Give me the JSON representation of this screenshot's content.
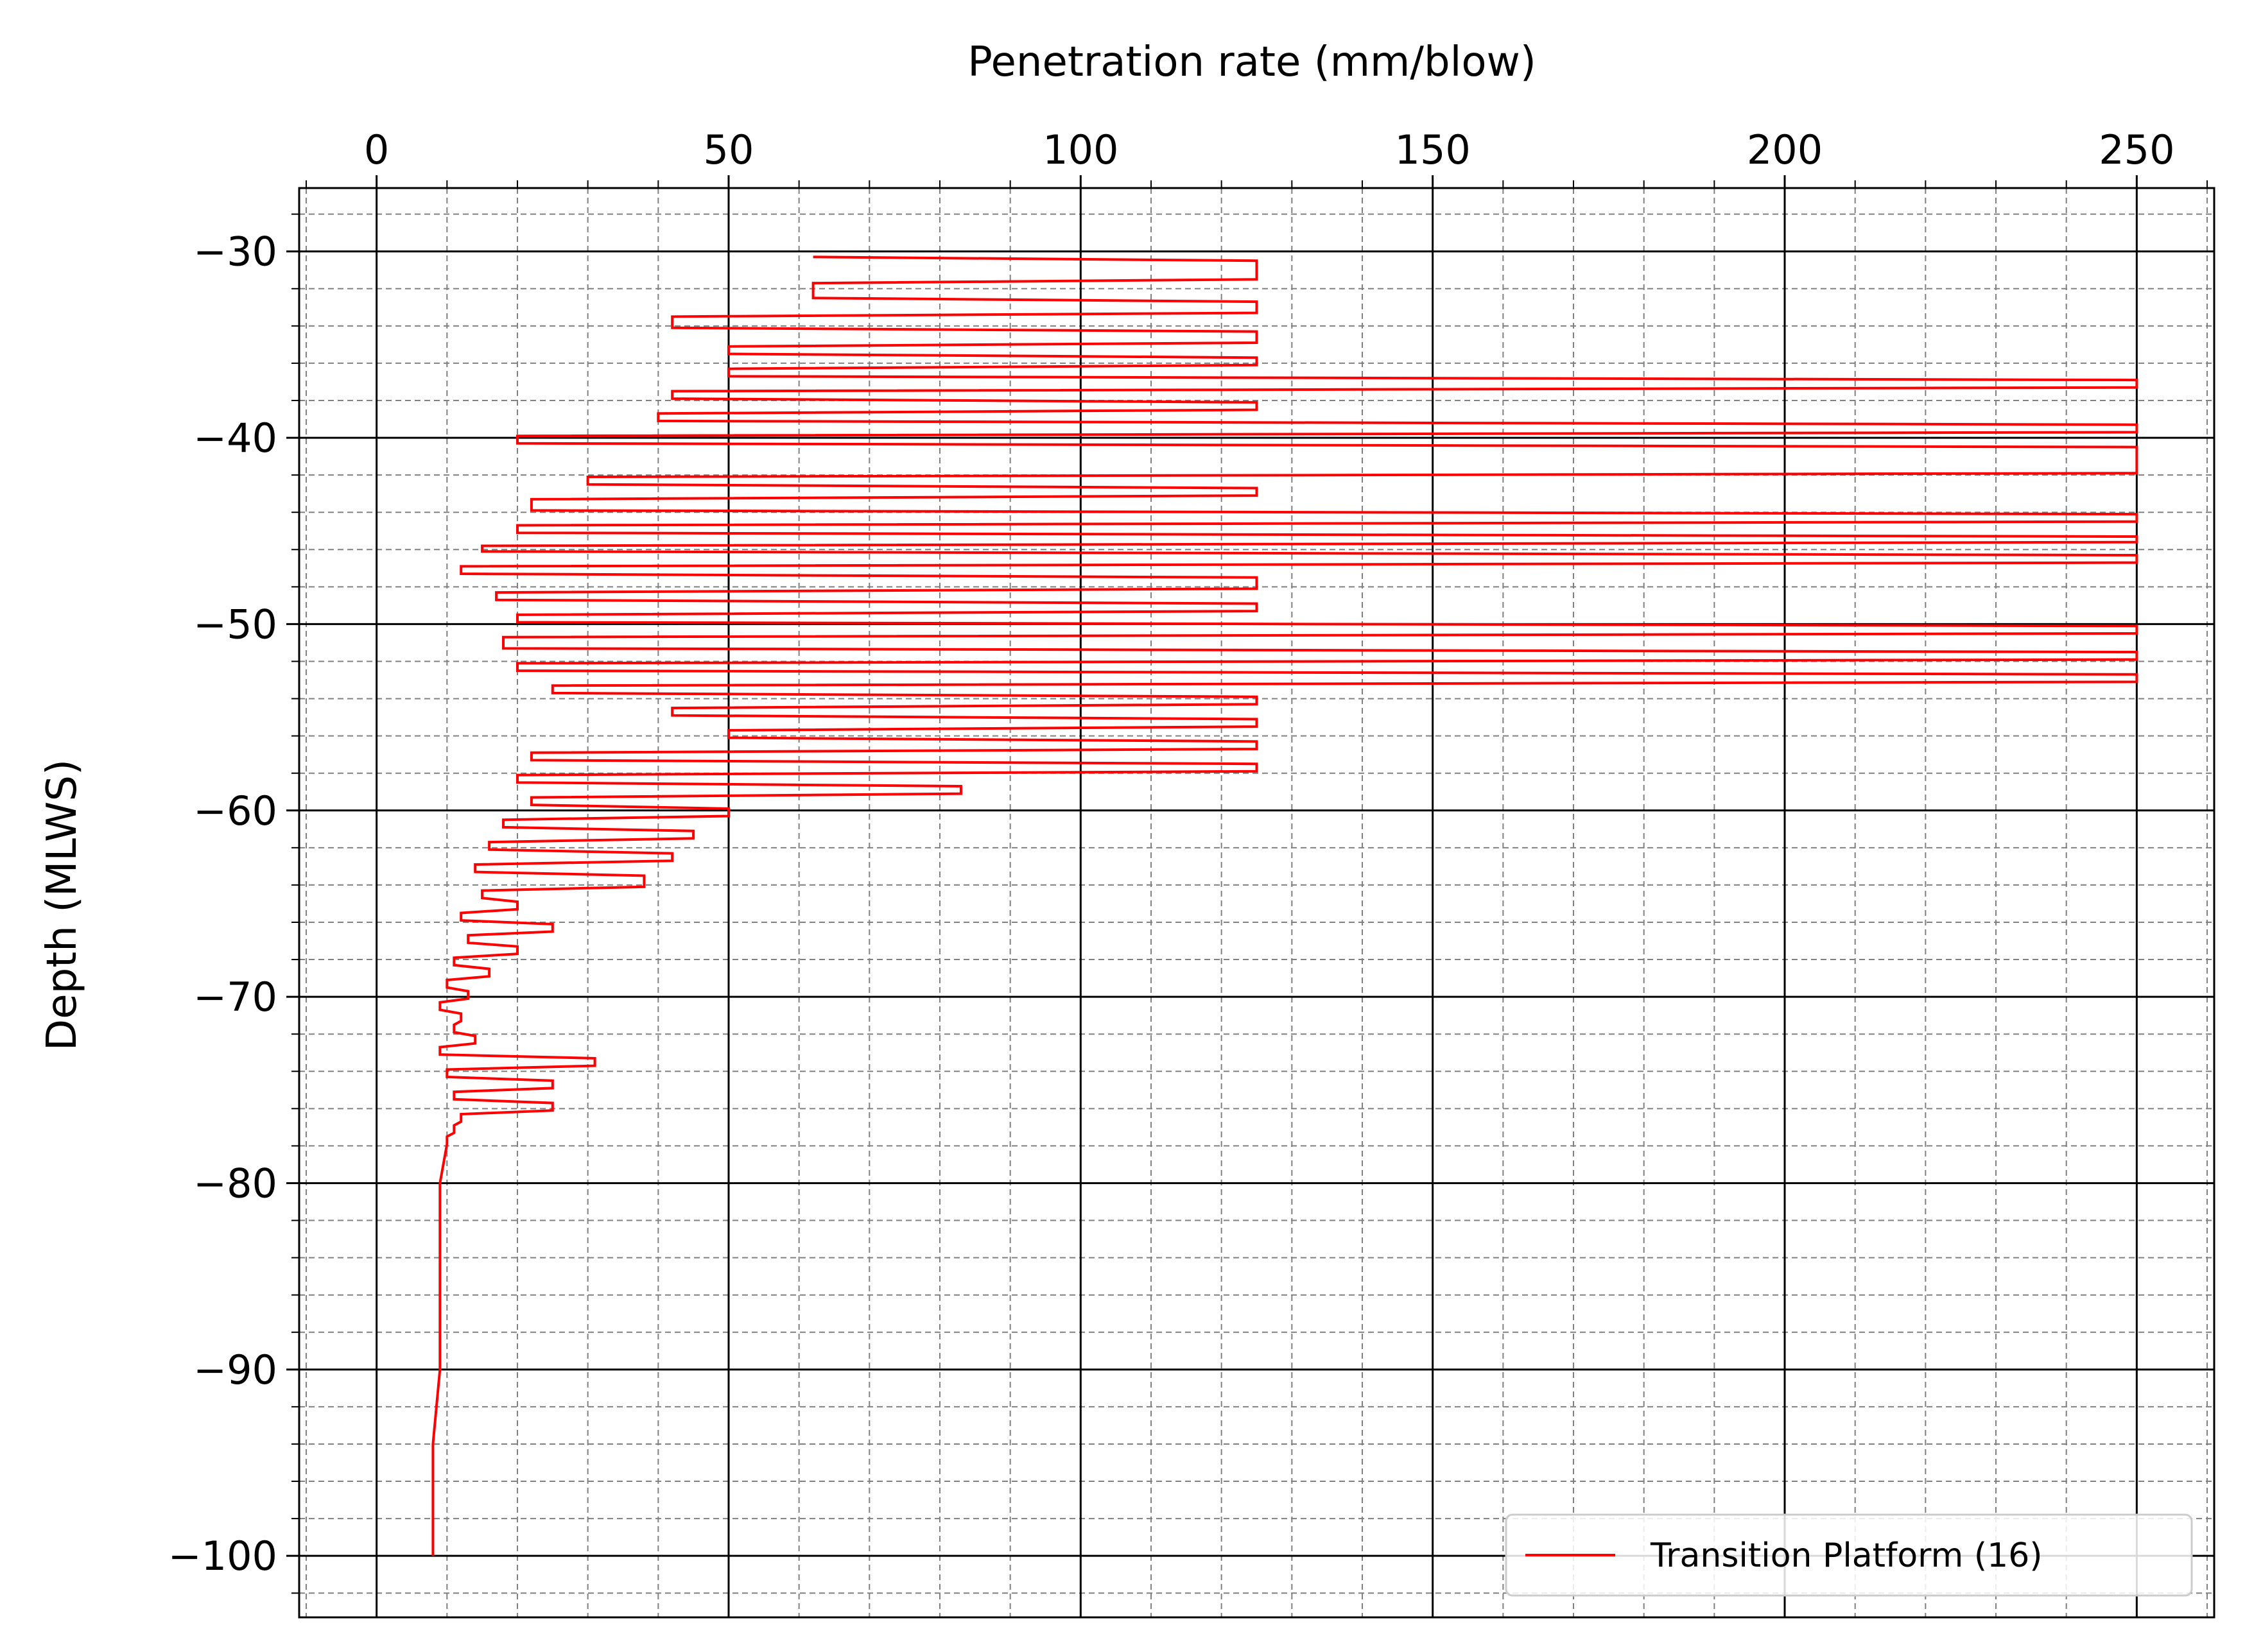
{
  "chart_data": {
    "type": "line",
    "title": "",
    "xlabel": "Penetration rate (mm/blow)",
    "ylabel": "Depth (MLWS)",
    "x_axis_position": "top",
    "xlim": [
      -11,
      261
    ],
    "ylim": [
      -103.3,
      -26.6
    ],
    "x_ticks": [
      0,
      50,
      100,
      150,
      200,
      250
    ],
    "x_tick_labels": [
      "0",
      "50",
      "100",
      "150",
      "200",
      "250"
    ],
    "y_ticks": [
      -30,
      -40,
      -50,
      -60,
      -70,
      -80,
      -90,
      -100
    ],
    "y_tick_labels": [
      "−30",
      "−40",
      "−50",
      "−60",
      "−70",
      "−80",
      "−90",
      "−100"
    ],
    "x_minor_step": 10,
    "y_minor_step": 2,
    "grid": {
      "major": true,
      "minor": true
    },
    "legend": {
      "position": "bottom-right",
      "entries": [
        "Transition Platform (16)"
      ]
    },
    "colors": {
      "series": "#ff0000",
      "major_grid": "#000000",
      "minor_grid": "#808080"
    },
    "series": [
      {
        "name": "Transition Platform (16)",
        "color": "#ff0000",
        "x": [
          62,
          125,
          125,
          62,
          62,
          125,
          125,
          42,
          42,
          125,
          125,
          50,
          50,
          125,
          125,
          50,
          50,
          250,
          250,
          42,
          42,
          125,
          125,
          40,
          40,
          250,
          250,
          20,
          20,
          250,
          250,
          30,
          30,
          125,
          125,
          22,
          22,
          250,
          250,
          20,
          20,
          250,
          250,
          15,
          15,
          250,
          250,
          12,
          12,
          125,
          125,
          17,
          17,
          125,
          125,
          20,
          20,
          250,
          250,
          18,
          18,
          250,
          250,
          20,
          20,
          250,
          250,
          25,
          25,
          125,
          125,
          42,
          42,
          125,
          125,
          50,
          50,
          125,
          125,
          22,
          22,
          125,
          125,
          20,
          20,
          83,
          83,
          22,
          22,
          50,
          50,
          18,
          18,
          45,
          45,
          16,
          16,
          42,
          42,
          14,
          14,
          38,
          38,
          15,
          15,
          20,
          20,
          12,
          12,
          25,
          25,
          13,
          13,
          20,
          20,
          11,
          11,
          16,
          16,
          10,
          10,
          13,
          13,
          9,
          9,
          12,
          12,
          11,
          11,
          14,
          14,
          9,
          9,
          31,
          31,
          10,
          10,
          25,
          25,
          11,
          11,
          25,
          25,
          12,
          12,
          11,
          11,
          10,
          10,
          9,
          9,
          9,
          8,
          8,
          8,
          8
        ],
        "y": [
          -30.3,
          -30.5,
          -31.5,
          -31.7,
          -32.5,
          -32.7,
          -33.3,
          -33.5,
          -34.1,
          -34.3,
          -34.9,
          -35.1,
          -35.5,
          -35.7,
          -36.1,
          -36.3,
          -36.7,
          -36.9,
          -37.3,
          -37.5,
          -37.9,
          -38.1,
          -38.5,
          -38.7,
          -39.1,
          -39.3,
          -39.7,
          -39.9,
          -40.3,
          -40.5,
          -41.9,
          -42.1,
          -42.5,
          -42.7,
          -43.1,
          -43.3,
          -43.9,
          -44.1,
          -44.5,
          -44.7,
          -45.1,
          -45.3,
          -45.6,
          -45.8,
          -46.1,
          -46.3,
          -46.7,
          -46.9,
          -47.3,
          -47.5,
          -48.1,
          -48.3,
          -48.7,
          -48.9,
          -49.3,
          -49.5,
          -49.9,
          -50.1,
          -50.5,
          -50.7,
          -51.3,
          -51.5,
          -51.9,
          -52.1,
          -52.5,
          -52.7,
          -53.1,
          -53.3,
          -53.7,
          -53.9,
          -54.3,
          -54.5,
          -54.9,
          -55.1,
          -55.5,
          -55.7,
          -56.1,
          -56.3,
          -56.7,
          -56.9,
          -57.3,
          -57.5,
          -57.9,
          -58.1,
          -58.5,
          -58.7,
          -59.1,
          -59.3,
          -59.7,
          -59.9,
          -60.3,
          -60.5,
          -60.9,
          -61.1,
          -61.5,
          -61.7,
          -62.1,
          -62.3,
          -62.7,
          -62.9,
          -63.3,
          -63.5,
          -64.1,
          -64.3,
          -64.7,
          -64.9,
          -65.3,
          -65.5,
          -65.9,
          -66.1,
          -66.5,
          -66.7,
          -67.1,
          -67.3,
          -67.7,
          -67.9,
          -68.3,
          -68.5,
          -68.9,
          -69.1,
          -69.5,
          -69.7,
          -70.1,
          -70.3,
          -70.7,
          -70.9,
          -71.3,
          -71.5,
          -71.9,
          -72.1,
          -72.5,
          -72.7,
          -73.1,
          -73.3,
          -73.7,
          -73.9,
          -74.3,
          -74.5,
          -74.9,
          -75.1,
          -75.5,
          -75.7,
          -76.1,
          -76.3,
          -76.7,
          -76.9,
          -77.3,
          -77.5,
          -77.9,
          -80.0,
          -85.0,
          -90.0,
          -94.0,
          -97.0,
          -99.0,
          -100.0
        ]
      }
    ]
  }
}
